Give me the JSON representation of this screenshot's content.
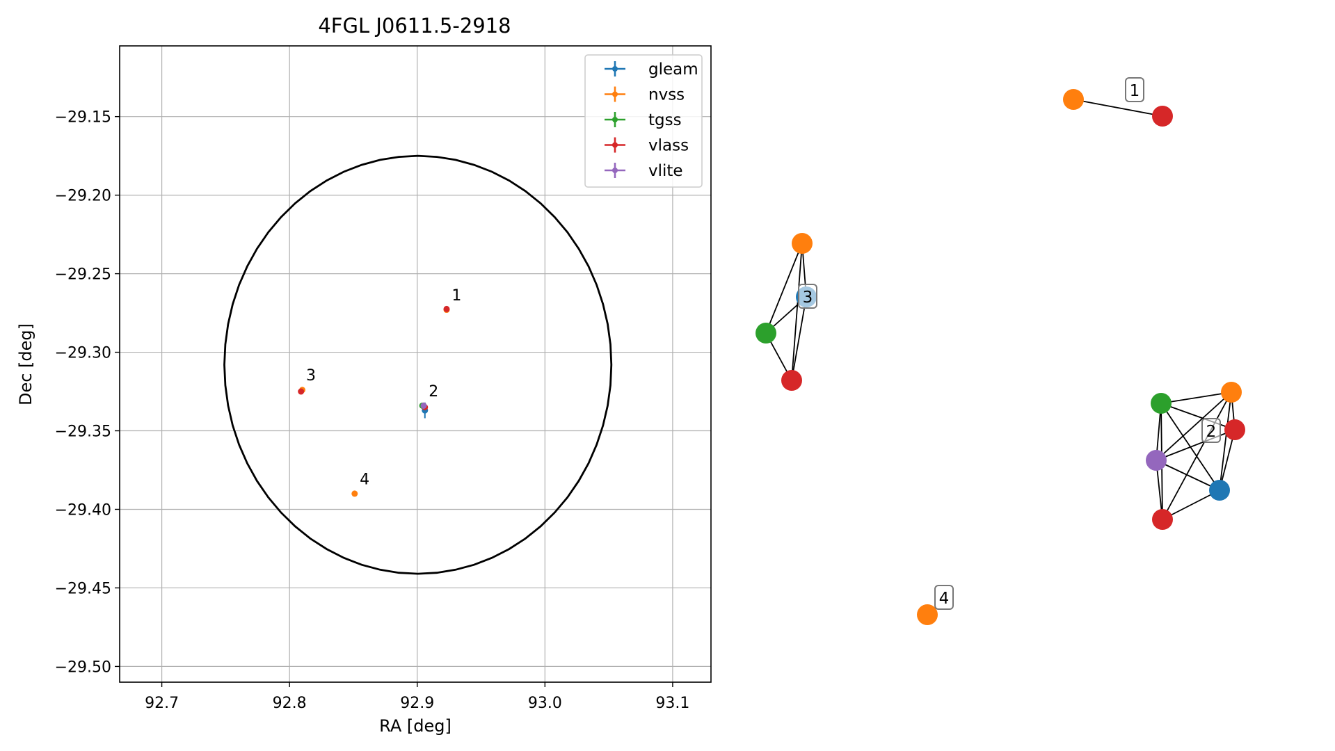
{
  "chart_data": [
    {
      "type": "scatter",
      "title": "4FGL J0611.5-2918",
      "xlabel": "RA [deg]",
      "ylabel": "Dec [deg]",
      "xlim": [
        92.667,
        93.13
      ],
      "ylim": [
        -29.51,
        -29.105
      ],
      "xticks": [
        92.7,
        92.8,
        92.9,
        93.0,
        93.1
      ],
      "xtick_labels": [
        "92.7",
        "92.8",
        "92.9",
        "93.0",
        "93.1"
      ],
      "yticks": [
        -29.15,
        -29.2,
        -29.25,
        -29.3,
        -29.35,
        -29.4,
        -29.45,
        -29.5
      ],
      "ytick_labels": [
        "−29.15",
        "−29.20",
        "−29.25",
        "−29.30",
        "−29.35",
        "−29.40",
        "−29.45",
        "−29.50"
      ],
      "grid": true,
      "legend_position": "top-right",
      "ellipse": {
        "center": [
          92.9005,
          -29.308
        ],
        "ra_semi_axis": 0.1515,
        "dec_semi_axis": 0.133
      },
      "series": [
        {
          "name": "gleam",
          "color": "#1f77b4",
          "points": [
            {
              "x": 92.906,
              "y": -29.337,
              "xerr": 0.002,
              "yerr": 0.005
            }
          ]
        },
        {
          "name": "nvss",
          "color": "#ff7f0e",
          "points": [
            {
              "x": 92.923,
              "y": -29.273,
              "xerr": 0.0015,
              "yerr": 0.0015
            },
            {
              "x": 92.851,
              "y": -29.39,
              "xerr": 0.0015,
              "yerr": 0.0015
            },
            {
              "x": 92.81,
              "y": -29.324,
              "xerr": 0.0015,
              "yerr": 0.0015
            },
            {
              "x": 92.905,
              "y": -29.334,
              "xerr": 0.0015,
              "yerr": 0.0015
            }
          ]
        },
        {
          "name": "tgss",
          "color": "#2ca02c",
          "points": [
            {
              "x": 92.904,
              "y": -29.334,
              "xerr": 0.0015,
              "yerr": 0.0015
            }
          ]
        },
        {
          "name": "vlass",
          "color": "#d62728",
          "points": [
            {
              "x": 92.923,
              "y": -29.2725,
              "xerr": 0.001,
              "yerr": 0.001
            },
            {
              "x": 92.809,
              "y": -29.325,
              "xerr": 0.001,
              "yerr": 0.001
            },
            {
              "x": 92.906,
              "y": -29.335,
              "xerr": 0.001,
              "yerr": 0.001
            }
          ]
        },
        {
          "name": "vlite",
          "color": "#9467bd",
          "points": [
            {
              "x": 92.905,
              "y": -29.334,
              "xerr": 0.002,
              "yerr": 0.002
            }
          ]
        }
      ],
      "annotations": [
        {
          "text": "1",
          "x": 92.927,
          "y": -29.267
        },
        {
          "text": "2",
          "x": 92.909,
          "y": -29.328
        },
        {
          "text": "3",
          "x": 92.813,
          "y": -29.318
        },
        {
          "text": "4",
          "x": 92.855,
          "y": -29.384
        }
      ]
    },
    {
      "type": "network",
      "node_colors": {
        "gleam": "#1f77b4",
        "nvss": "#ff7f0e",
        "tgss": "#2ca02c",
        "vlass": "#d62728",
        "vlite": "#9467bd"
      },
      "groups": [
        {
          "label": "1",
          "nodes": [
            "nvss",
            "vlass"
          ],
          "edges": [
            [
              0,
              1
            ]
          ]
        },
        {
          "label": "2",
          "nodes": [
            "tgss",
            "nvss",
            "vlass",
            "vlite",
            "gleam",
            "vlass"
          ],
          "edges": [
            [
              0,
              1
            ],
            [
              0,
              2
            ],
            [
              0,
              3
            ],
            [
              0,
              4
            ],
            [
              0,
              5
            ],
            [
              1,
              2
            ],
            [
              1,
              3
            ],
            [
              1,
              4
            ],
            [
              1,
              5
            ],
            [
              2,
              3
            ],
            [
              2,
              4
            ],
            [
              3,
              4
            ],
            [
              3,
              5
            ],
            [
              4,
              5
            ]
          ]
        },
        {
          "label": "3",
          "nodes": [
            "nvss",
            "gleam",
            "tgss",
            "vlass"
          ],
          "edges": [
            [
              0,
              1
            ],
            [
              0,
              2
            ],
            [
              0,
              3
            ],
            [
              1,
              2
            ],
            [
              1,
              3
            ],
            [
              2,
              3
            ]
          ]
        },
        {
          "label": "4",
          "nodes": [
            "nvss"
          ],
          "edges": []
        }
      ]
    }
  ]
}
